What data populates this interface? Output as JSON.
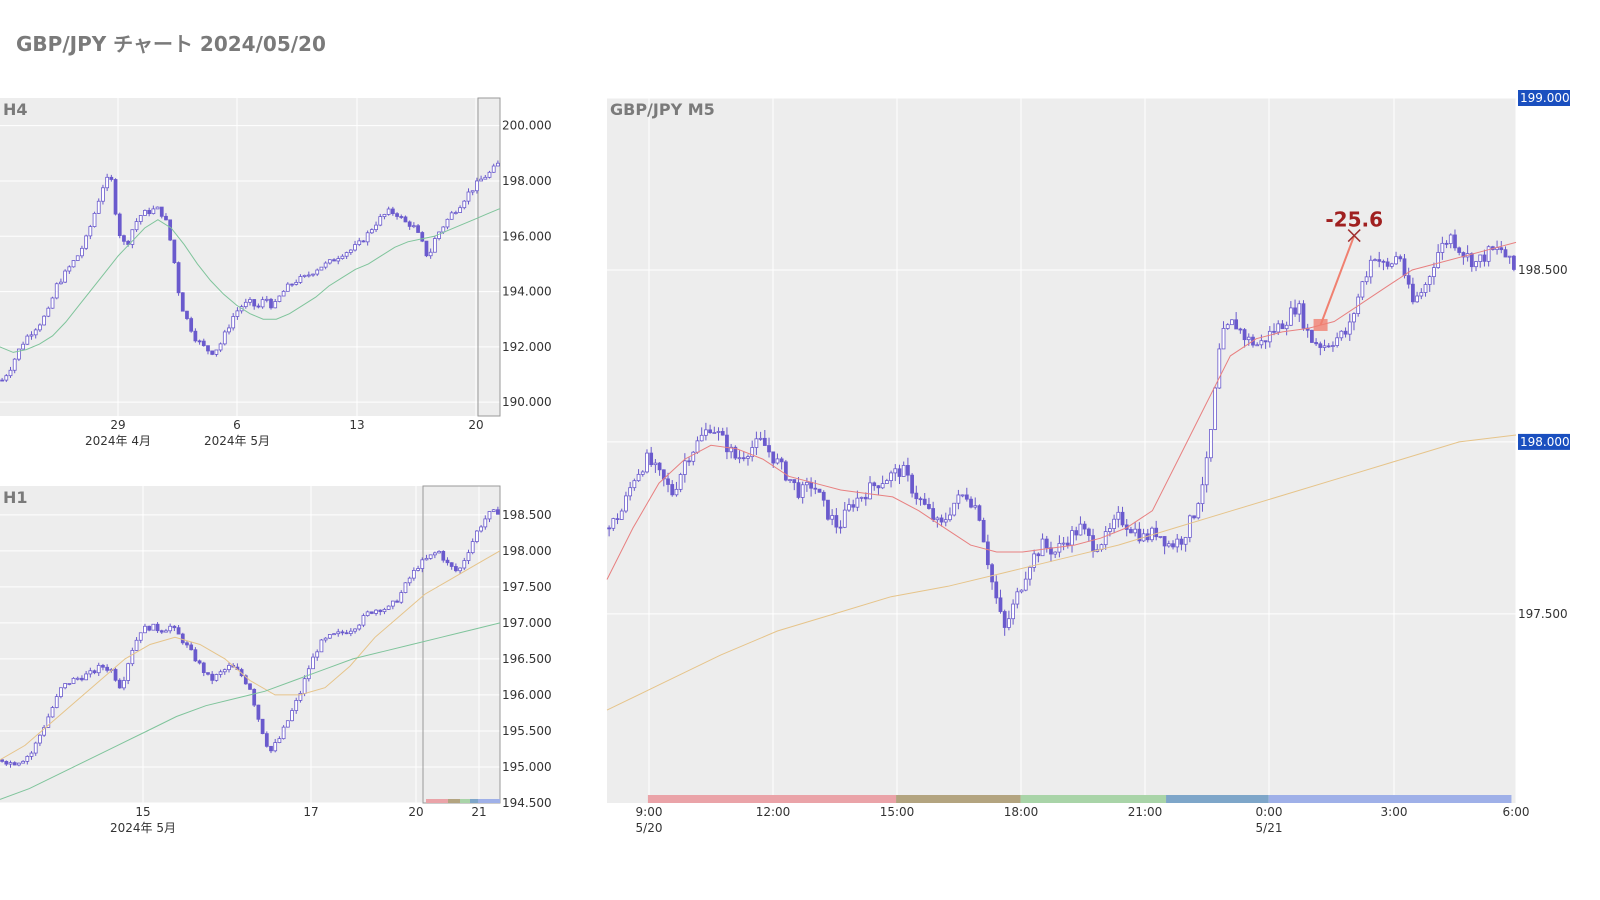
{
  "page": {
    "title": "GBP/JPY チャート 2024/05/20"
  },
  "colors": {
    "candle": "#6a5acd",
    "ma_short": "#e88080",
    "ma_mid": "#e6c48a",
    "ma_long": "#7fc49b",
    "plot_bg": "#ededed",
    "label_bg": "#1a4fbf"
  },
  "chart_data": [
    {
      "id": "h4",
      "type": "candlestick",
      "title": "H4",
      "ylim": [
        189.5,
        201.0
      ],
      "y_ticks": [
        "200.000",
        "198.000",
        "196.000",
        "194.000",
        "192.000",
        "190.000"
      ],
      "y_tick_values": [
        200,
        198,
        196,
        194,
        192,
        190
      ],
      "x_ticks": [
        "29",
        "6",
        "13",
        "20"
      ],
      "x_sub": [
        "2024年 4月",
        "2024年 5月"
      ],
      "close_path": [
        190.8,
        191.2,
        191.8,
        192.3,
        192.6,
        192.9,
        193.3,
        194.2,
        194.6,
        195.0,
        195.4,
        196.0,
        196.9,
        197.8,
        198.2,
        196.2,
        195.6,
        196.4,
        196.8,
        196.9,
        197.0,
        196.7,
        195.5,
        193.6,
        192.9,
        192.3,
        192.0,
        191.8,
        192.0,
        192.6,
        193.2,
        193.5,
        193.6,
        193.4,
        193.8,
        193.4,
        193.9,
        194.2,
        194.4,
        194.5,
        194.7,
        194.9,
        195.0,
        195.2,
        195.4,
        195.5,
        195.7,
        196.0,
        196.4,
        196.7,
        196.9,
        196.8,
        196.5,
        196.4,
        195.9,
        195.2,
        196.0,
        196.4,
        196.8,
        197.1,
        197.5,
        197.8,
        198.1,
        198.3,
        198.6
      ],
      "ma_path": [
        192.0,
        191.8,
        191.9,
        192.1,
        192.4,
        192.9,
        193.5,
        194.1,
        194.7,
        195.3,
        195.8,
        196.3,
        196.6,
        196.3,
        195.7,
        195.0,
        194.4,
        193.9,
        193.5,
        193.2,
        193.0,
        193.0,
        193.2,
        193.5,
        193.8,
        194.2,
        194.5,
        194.8,
        195.0,
        195.3,
        195.6,
        195.8,
        195.9,
        196.0,
        196.2,
        196.4,
        196.6,
        196.8,
        197.0
      ],
      "highlight_from": "20"
    },
    {
      "id": "h1",
      "type": "candlestick",
      "title": "H1",
      "ylim": [
        194.5,
        198.9
      ],
      "y_ticks": [
        "198.500",
        "198.000",
        "197.500",
        "197.000",
        "196.500",
        "196.000",
        "195.500",
        "195.000",
        "194.500"
      ],
      "y_tick_values": [
        198.5,
        198.0,
        197.5,
        197.0,
        196.5,
        196.0,
        195.5,
        195.0,
        194.5
      ],
      "x_ticks": [
        "15",
        "17",
        "20",
        "21"
      ],
      "x_sub": [
        "2024年 5月"
      ],
      "close_path": [
        195.1,
        195.05,
        195.1,
        195.2,
        195.5,
        195.8,
        196.1,
        196.2,
        196.25,
        196.3,
        196.4,
        196.35,
        196.1,
        196.6,
        196.9,
        196.95,
        196.9,
        196.95,
        196.8,
        196.6,
        196.4,
        196.2,
        196.3,
        196.4,
        196.3,
        196.1,
        195.6,
        195.2,
        195.4,
        195.7,
        196.0,
        196.4,
        196.7,
        196.8,
        196.85,
        196.9,
        197.0,
        197.15,
        197.2,
        197.2,
        197.35,
        197.6,
        197.8,
        197.9,
        198.0,
        197.8,
        197.7,
        198.0,
        198.3,
        198.5,
        198.55
      ],
      "ma_mid_path": [
        195.1,
        195.3,
        195.6,
        195.9,
        196.2,
        196.5,
        196.7,
        196.8,
        196.7,
        196.5,
        196.2,
        196.0,
        196.0,
        196.1,
        196.4,
        196.8,
        197.1,
        197.4,
        197.6,
        197.8,
        198.0
      ],
      "ma_long_path": [
        194.55,
        194.7,
        194.9,
        195.1,
        195.3,
        195.5,
        195.7,
        195.85,
        195.95,
        196.05,
        196.2,
        196.35,
        196.5,
        196.6,
        196.7,
        196.8,
        196.9,
        197.0
      ],
      "highlight_from": "20"
    },
    {
      "id": "m5",
      "type": "candlestick",
      "title": "GBP/JPY M5",
      "ylim": [
        196.95,
        199.0
      ],
      "y_ticks": [
        "199.000",
        "198.500",
        "198.000",
        "197.500"
      ],
      "y_tick_values": [
        199.0,
        198.5,
        198.0,
        197.5
      ],
      "y_highlight": [
        "199.000",
        "198.000"
      ],
      "x_ticks": [
        "9:00",
        "12:00",
        "15:00",
        "18:00",
        "21:00",
        "0:00",
        "3:00",
        "6:00"
      ],
      "x_sub": [
        "5/20",
        "5/21"
      ],
      "close_path": [
        197.75,
        197.8,
        197.9,
        197.95,
        197.9,
        197.85,
        197.95,
        198.0,
        198.05,
        198.0,
        197.95,
        197.98,
        198.0,
        197.95,
        197.9,
        197.85,
        197.88,
        197.8,
        197.75,
        197.82,
        197.85,
        197.88,
        197.9,
        197.92,
        197.85,
        197.8,
        197.75,
        197.82,
        197.85,
        197.8,
        197.6,
        197.45,
        197.55,
        197.65,
        197.7,
        197.68,
        197.72,
        197.75,
        197.7,
        197.72,
        197.78,
        197.75,
        197.72,
        197.74,
        197.7,
        197.72,
        197.8,
        197.95,
        198.3,
        198.35,
        198.3,
        198.28,
        198.32,
        198.35,
        198.4,
        198.3,
        198.28,
        198.3,
        198.32,
        198.45,
        198.55,
        198.5,
        198.55,
        198.4,
        198.45,
        198.55,
        198.6,
        198.55,
        198.52,
        198.55,
        198.56,
        198.5
      ],
      "ma_short_path": [
        197.6,
        197.75,
        197.88,
        197.95,
        197.99,
        197.98,
        197.95,
        197.9,
        197.88,
        197.86,
        197.85,
        197.84,
        197.8,
        197.75,
        197.7,
        197.68,
        197.68,
        197.69,
        197.7,
        197.72,
        197.75,
        197.8,
        197.95,
        198.1,
        198.25,
        198.3,
        198.32,
        198.33,
        198.35,
        198.4,
        198.45,
        198.5,
        198.52,
        198.54,
        198.56,
        198.58
      ],
      "ma_long_path": [
        197.22,
        197.3,
        197.38,
        197.45,
        197.5,
        197.55,
        197.58,
        197.62,
        197.66,
        197.7,
        197.75,
        197.8,
        197.85,
        197.9,
        197.95,
        198.0,
        198.02
      ],
      "annotation": {
        "text": "-25.6",
        "price": 198.6,
        "time_frac": 0.822
      },
      "entry": {
        "price": 198.34,
        "time_frac": 0.785
      },
      "sessions": [
        {
          "from": 0.045,
          "to": 0.318,
          "color": "#eaa3a8"
        },
        {
          "from": 0.318,
          "to": 0.455,
          "color": "#b3a480"
        },
        {
          "from": 0.455,
          "to": 0.615,
          "color": "#a9d4a8"
        },
        {
          "from": 0.615,
          "to": 0.728,
          "color": "#7ea6c9"
        },
        {
          "from": 0.728,
          "to": 0.995,
          "color": "#9fb0e8"
        }
      ]
    }
  ]
}
